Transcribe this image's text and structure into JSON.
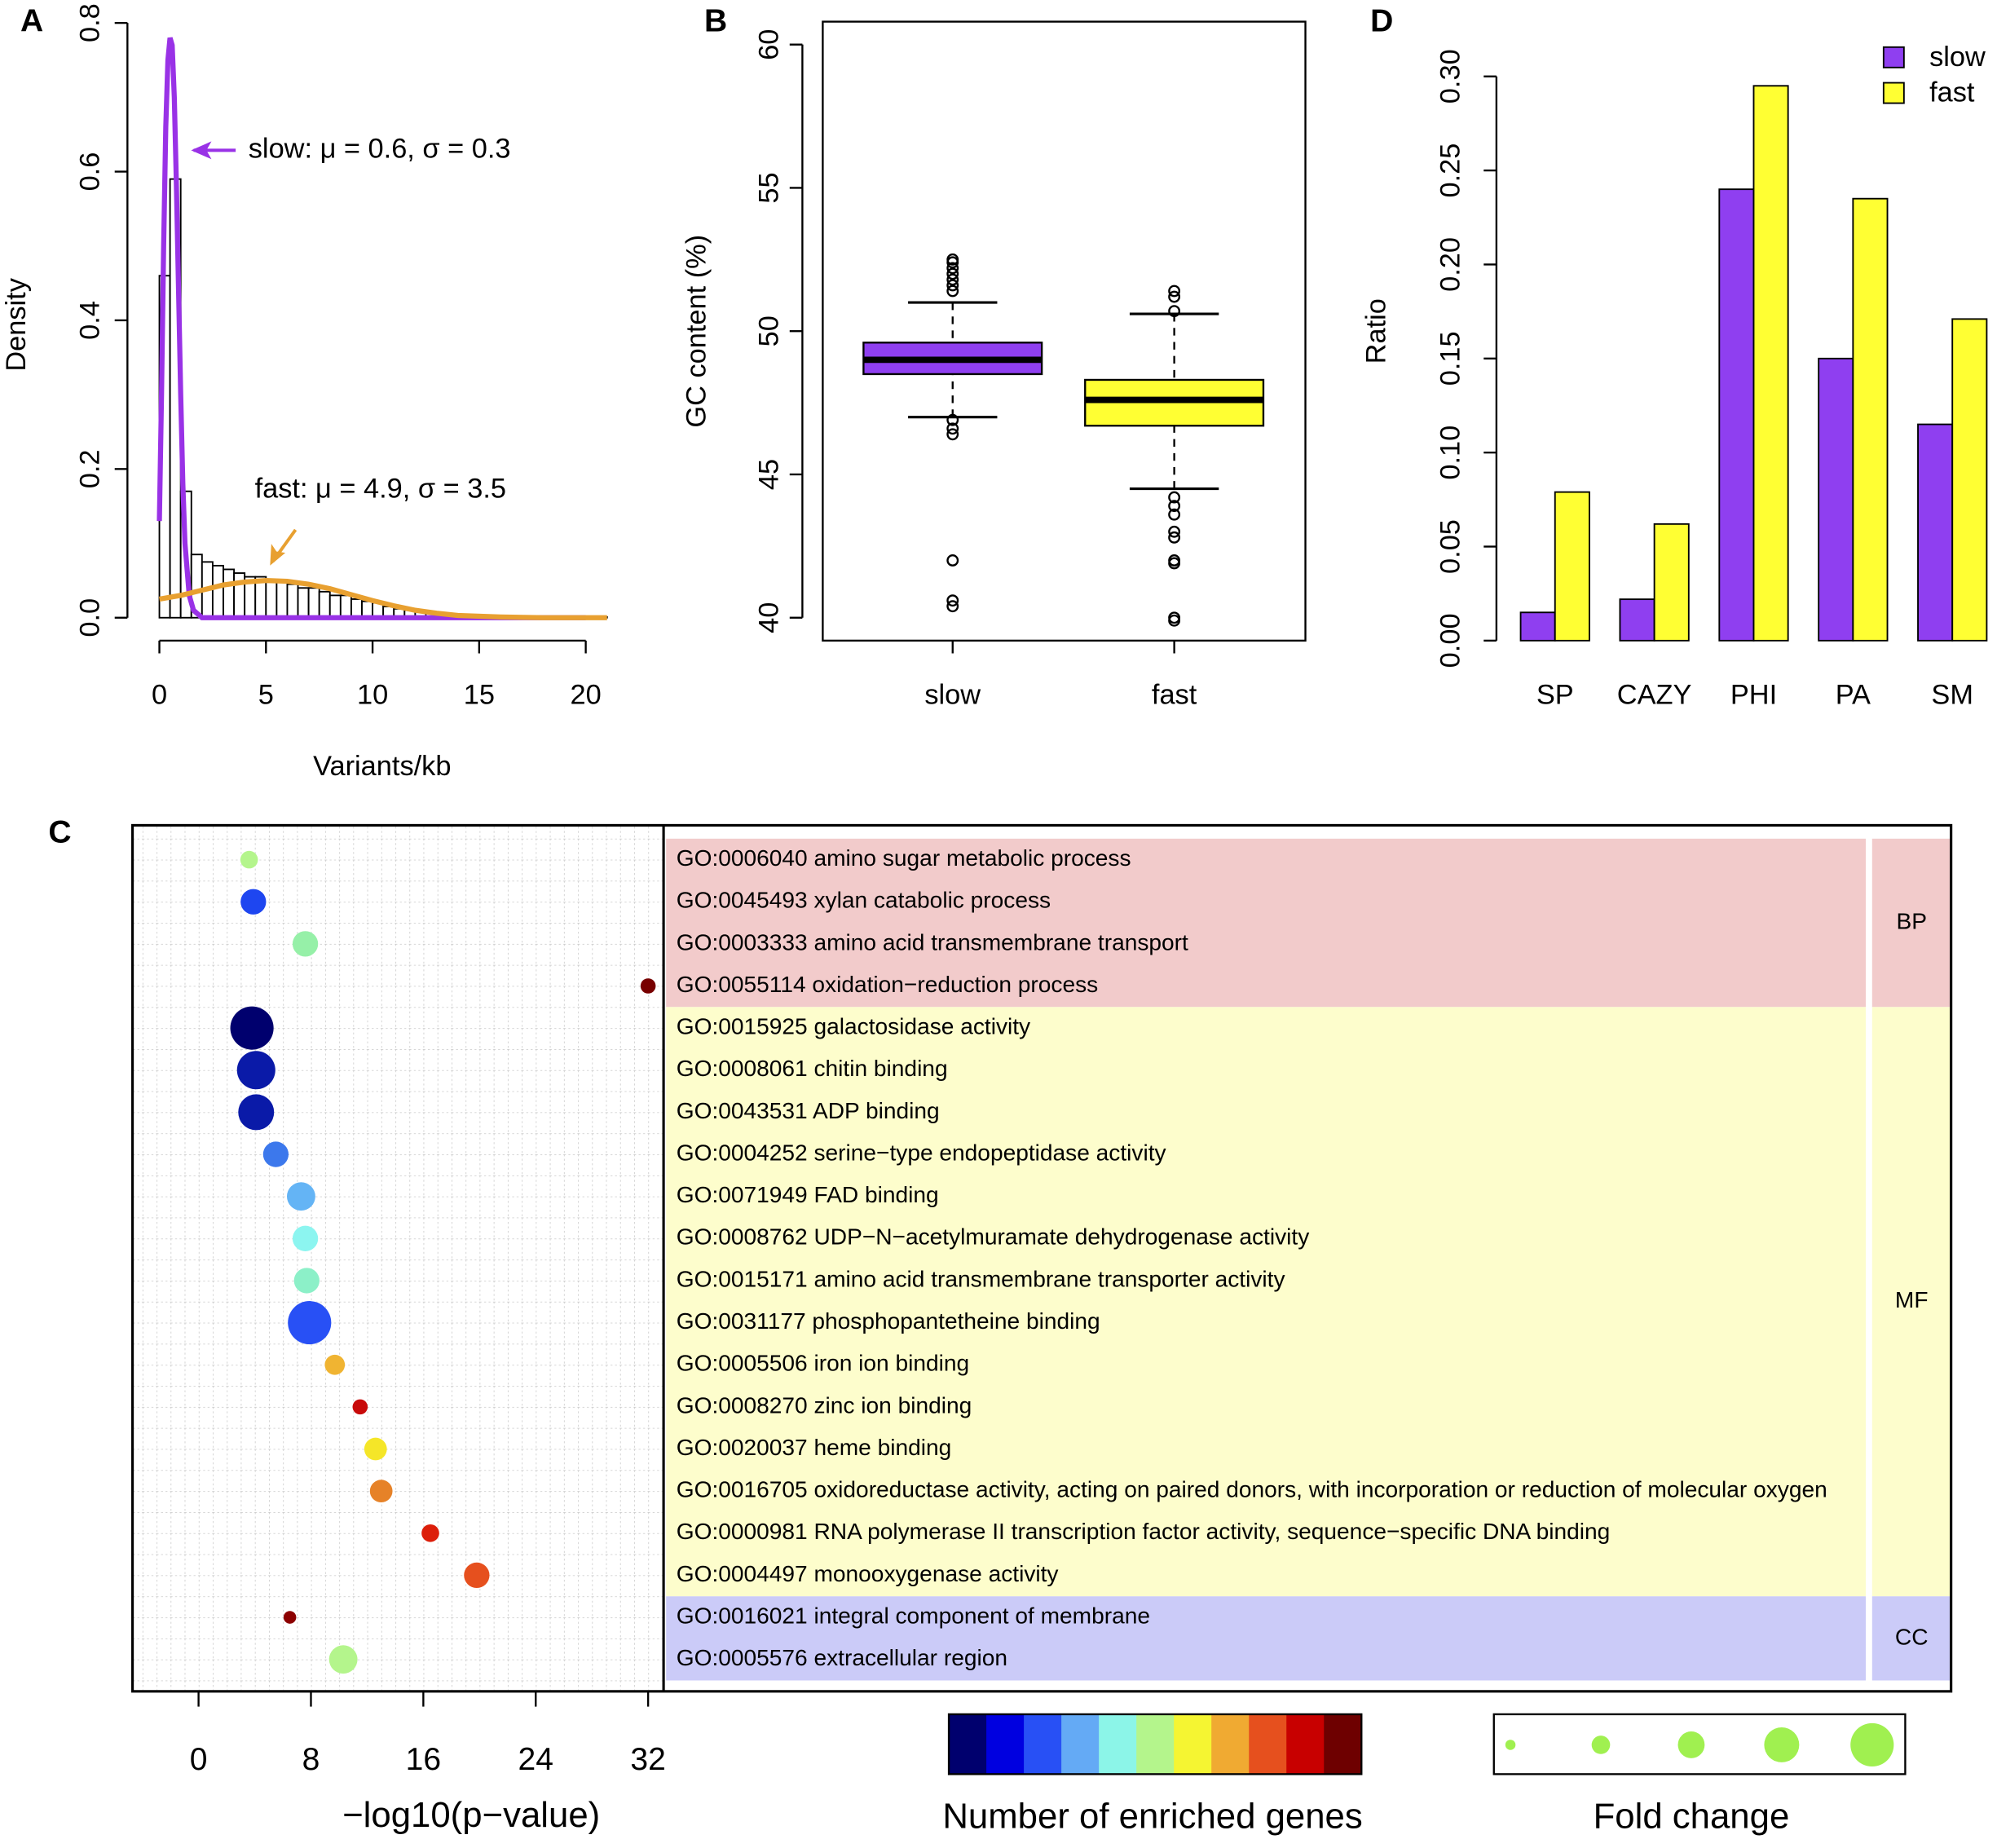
{
  "chart_data": [
    {
      "type": "histogram",
      "label": "A",
      "xlabel": "Variants/kb",
      "ylabel": "Density",
      "bins": [
        0,
        0.5,
        1,
        1.5,
        2,
        2.5,
        3,
        3.5,
        4,
        4.5,
        5,
        5.5,
        6,
        6.5,
        7,
        7.5,
        8,
        8.5,
        9,
        9.5,
        10,
        10.5,
        11,
        11.5,
        12,
        12.5,
        13,
        13.5,
        14,
        14.5,
        15,
        15.5,
        16,
        16.5,
        17,
        17.5,
        18,
        18.5,
        19,
        19.5,
        20,
        20.5,
        21
      ],
      "counts": [
        0.46,
        0.59,
        0.17,
        0.085,
        0.075,
        0.07,
        0.065,
        0.06,
        0.055,
        0.055,
        0.05,
        0.05,
        0.045,
        0.04,
        0.04,
        0.035,
        0.03,
        0.03,
        0.025,
        0.022,
        0.02,
        0.015,
        0.012,
        0.01,
        0.008,
        0.006,
        0.005,
        0.004,
        0.003,
        0.003,
        0.002,
        0.002,
        0.002,
        0.001,
        0.001,
        0.001,
        0.001,
        0.001,
        0.001,
        0.001,
        0.001,
        0.001
      ],
      "curves": [
        {
          "color": "#9932e6",
          "x": [
            0,
            0.1,
            0.2,
            0.3,
            0.4,
            0.5,
            0.6,
            0.7,
            0.8,
            0.9,
            1.0,
            1.1,
            1.2,
            1.4,
            1.6,
            2,
            5,
            10,
            15,
            20
          ],
          "y": [
            0.13,
            0.3,
            0.5,
            0.66,
            0.75,
            0.78,
            0.77,
            0.7,
            0.58,
            0.44,
            0.3,
            0.18,
            0.1,
            0.03,
            0.01,
            0,
            0,
            0,
            0,
            0
          ]
        },
        {
          "color": "#e8a030",
          "x": [
            0,
            1,
            2,
            3,
            4,
            5,
            6,
            7,
            8,
            9,
            10,
            11,
            12,
            13,
            14,
            16,
            18,
            20,
            21
          ],
          "y": [
            0.025,
            0.03,
            0.037,
            0.044,
            0.048,
            0.05,
            0.049,
            0.045,
            0.039,
            0.031,
            0.023,
            0.016,
            0.01,
            0.006,
            0.003,
            0.001,
            0,
            0,
            0
          ]
        }
      ],
      "annotations": [
        {
          "text": "slow: μ = 0.6,  σ = 0.3",
          "color": "#9932e6"
        },
        {
          "text": "fast: μ = 4.9,  σ = 3.5",
          "color": "#e8a030"
        }
      ],
      "xlim": [
        -1.2,
        21.5
      ],
      "ylim": [
        0,
        0.8
      ],
      "xticks": [
        0,
        5,
        10,
        15,
        20
      ],
      "yticks": [
        {
          "value": 0,
          "label": "0.0"
        },
        {
          "value": 0.2,
          "label": "0.2"
        },
        {
          "value": 0.4,
          "label": "0.4"
        },
        {
          "value": 0.6,
          "label": "0.6"
        },
        {
          "value": 0.8,
          "label": "0.8"
        }
      ]
    },
    {
      "type": "boxplot",
      "label": "B",
      "ylabel": "GC content (%)",
      "categories": [
        "slow",
        "fast"
      ],
      "colors": [
        "#8f3ff0",
        "#ffff33"
      ],
      "boxes": [
        {
          "whislo": 47.0,
          "q1": 48.5,
          "med": 49.0,
          "q3": 49.6,
          "whishi": 51.0,
          "fliers": [
            51.4,
            51.6,
            51.8,
            52.0,
            52.2,
            52.4,
            52.5,
            46.9,
            46.6,
            46.4,
            42.0,
            40.6,
            40.4
          ]
        },
        {
          "whislo": 44.5,
          "q1": 46.7,
          "med": 47.6,
          "q3": 48.3,
          "whishi": 50.6,
          "fliers": [
            50.7,
            51.2,
            51.4,
            44.2,
            43.9,
            43.6,
            43.0,
            42.8,
            42.0,
            41.9,
            40.0,
            39.9
          ]
        }
      ],
      "ylim": [
        39.2,
        60.8
      ],
      "yticks": [
        40,
        45,
        50,
        55,
        60
      ]
    },
    {
      "type": "bar",
      "label": "D",
      "ylabel": "Ratio",
      "categories": [
        "SP",
        "CAZY",
        "PHI",
        "PA",
        "SM"
      ],
      "series": [
        {
          "name": "slow",
          "color": "#8f3ff0",
          "values": [
            0.015,
            0.022,
            0.24,
            0.15,
            0.115
          ]
        },
        {
          "name": "fast",
          "color": "#ffff33",
          "values": [
            0.079,
            0.062,
            0.295,
            0.235,
            0.171
          ]
        }
      ],
      "ylim": [
        0,
        0.3
      ],
      "yticks": [
        {
          "value": 0,
          "label": "0.00"
        },
        {
          "value": 0.05,
          "label": "0.05"
        },
        {
          "value": 0.1,
          "label": "0.10"
        },
        {
          "value": 0.15,
          "label": "0.15"
        },
        {
          "value": 0.2,
          "label": "0.20"
        },
        {
          "value": 0.25,
          "label": "0.25"
        },
        {
          "value": 0.3,
          "label": "0.30"
        }
      ],
      "legend": "top-right"
    },
    {
      "type": "dotplot",
      "label": "C",
      "xlabel": "−log10(p−value)",
      "categories": [
        "GO:0006040 amino sugar metabolic process",
        "GO:0045493 xylan catabolic process",
        "GO:0003333 amino acid transmembrane transport",
        "GO:0055114 oxidation−reduction process",
        "GO:0015925 galactosidase activity",
        "GO:0008061 chitin binding",
        "GO:0043531 ADP binding",
        "GO:0004252 serine−type endopeptidase activity",
        "GO:0071949 FAD binding",
        "GO:0008762 UDP−N−acetylmuramate dehydrogenase activity",
        "GO:0015171 amino acid transmembrane transporter activity",
        "GO:0031177 phosphopantetheine binding",
        "GO:0005506 iron ion binding",
        "GO:0008270 zinc ion binding",
        "GO:0020037 heme binding",
        "GO:0016705 oxidoreductase activity, acting on paired donors, with incorporation or reduction of molecular oxygen",
        "GO:0000981 RNA polymerase II transcription factor activity, sequence−specific DNA binding",
        "GO:0004497 monooxygenase activity",
        "GO:0016021 integral component of membrane",
        "GO:0005576 extracellular region"
      ],
      "values": [
        3.6,
        3.9,
        7.6,
        32.0,
        3.8,
        4.1,
        4.1,
        5.5,
        7.3,
        7.6,
        7.7,
        7.9,
        9.7,
        11.5,
        12.6,
        13.0,
        16.5,
        19.8,
        6.5,
        10.3
      ],
      "sizes": [
        1.9,
        2.85,
        2.85,
        1.6,
        5.0,
        4.4,
        4.1,
        2.85,
        3.2,
        2.85,
        2.85,
        5.0,
        2.2,
        1.6,
        2.5,
        2.5,
        1.9,
        2.85,
        1.3,
        3.2
      ],
      "colors": [
        "#b4f58c",
        "#1e46f0",
        "#96f0a8",
        "#780000",
        "#00006e",
        "#0a1aa8",
        "#0a1aa8",
        "#3c78ec",
        "#64b4f5",
        "#8cf5f0",
        "#8cf0c8",
        "#2850f5",
        "#f0b432",
        "#c80a0a",
        "#f5e628",
        "#e68228",
        "#dc1e0a",
        "#e6501e",
        "#8c0000",
        "#b4f58c"
      ],
      "groups": [
        {
          "name": "BP",
          "count": 4,
          "color": "#f2cbcb"
        },
        {
          "name": "MF",
          "count": 14,
          "color": "#fdfdcc"
        },
        {
          "name": "CC",
          "count": 2,
          "color": "#cbcbf8"
        }
      ],
      "xlim": [
        -4.7,
        33.1
      ],
      "xticks": [
        0,
        8,
        16,
        24,
        32
      ],
      "colorbar": {
        "title": "Number of enriched genes",
        "colors": [
          "#00006e",
          "#0000e0",
          "#2850f5",
          "#64aaf5",
          "#8cf5e8",
          "#b4f58c",
          "#f5f532",
          "#f0aa32",
          "#e6501e",
          "#c80000",
          "#6e0000"
        ]
      },
      "size_legend": {
        "title": "Fold change",
        "sizes": [
          1,
          2,
          3,
          4,
          5
        ],
        "color": "#a0f050"
      }
    }
  ]
}
